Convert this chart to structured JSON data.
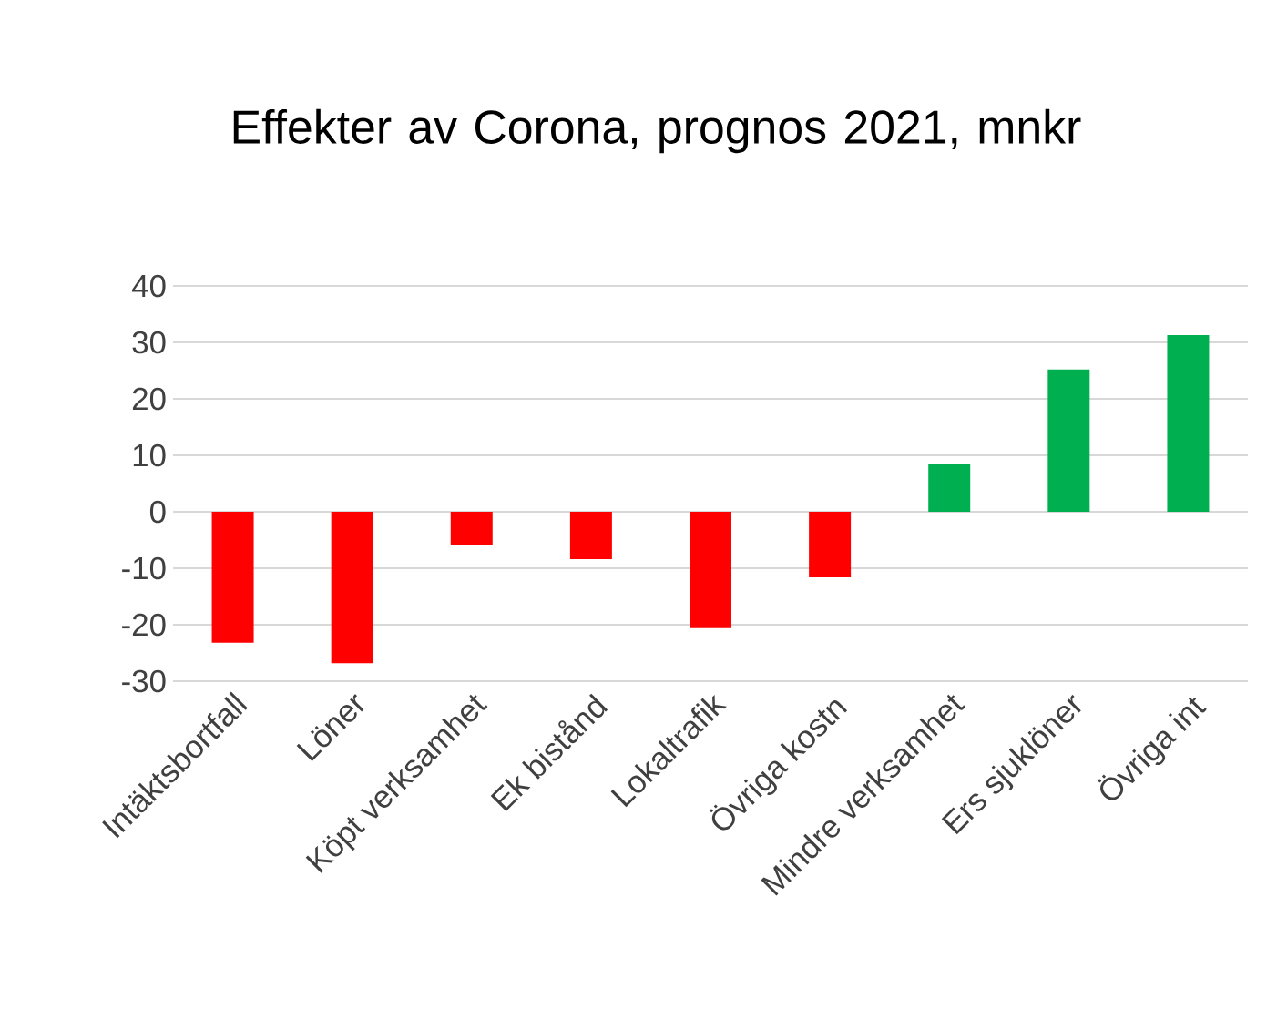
{
  "chart_data": {
    "type": "bar",
    "title": "Effekter av Corona, prognos 2021, mnkr",
    "categories": [
      "Intäktsbortfall",
      "Löner",
      "Köpt verksamhet",
      "Ek bistånd",
      "Lokaltrafik",
      "Övriga kostn",
      "Mindre verksamhet",
      "Ers sjuklöner",
      "Övriga int"
    ],
    "values": [
      -23.2,
      -26.8,
      -5.8,
      -8.4,
      -20.6,
      -11.6,
      8.4,
      25.2,
      31.3
    ],
    "colors": [
      "#ff0000",
      "#ff0000",
      "#ff0000",
      "#ff0000",
      "#ff0000",
      "#ff0000",
      "#00b050",
      "#00b050",
      "#00b050"
    ],
    "ylim": [
      -30,
      40
    ],
    "yticks": [
      -30,
      -20,
      -10,
      0,
      10,
      20,
      30,
      40
    ],
    "grid": "y"
  }
}
